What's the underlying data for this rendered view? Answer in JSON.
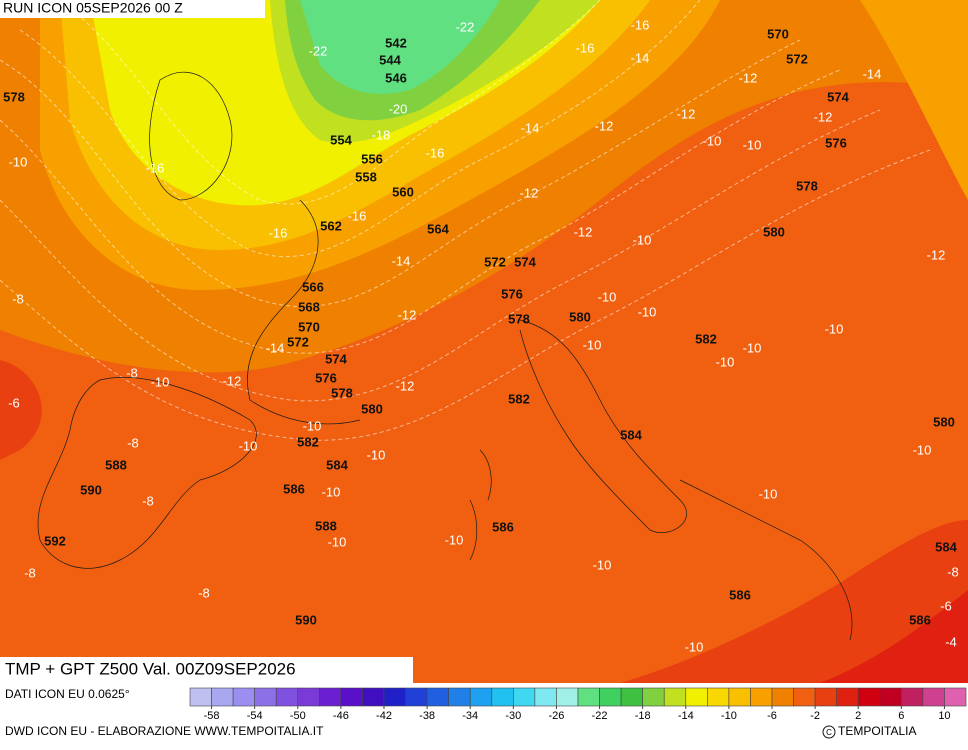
{
  "header": {
    "run": "RUN ICON 05SEP2026 00 Z",
    "title": "TMP + GPT Z500 Val. 00Z09SEP2026"
  },
  "footer": {
    "source": "DATI ICON EU 0.0625°",
    "credit": "DWD ICON EU - ELABORAZIONE WWW.TEMPOITALIA.IT",
    "brand": "TEMPOITALIA"
  },
  "colorbar": {
    "range": [
      -60,
      12
    ],
    "ticks": [
      -58,
      -54,
      -50,
      -46,
      -42,
      -38,
      -34,
      -30,
      -26,
      -22,
      -18,
      -14,
      -10,
      -6,
      -2,
      2,
      6,
      10
    ],
    "colors": [
      "#c0c0f0",
      "#a8a8f0",
      "#9a8ef0",
      "#8c70e8",
      "#8050e0",
      "#7a3ad8",
      "#6a20d0",
      "#5a10c8",
      "#4010c0",
      "#2020c8",
      "#2040d8",
      "#2060e0",
      "#2080e8",
      "#20a0f0",
      "#20c0f0",
      "#40d8f0",
      "#80e8f0",
      "#a0f0e8",
      "#60e080",
      "#40d060",
      "#40c040",
      "#80d040",
      "#c0e020",
      "#f0f000",
      "#f8d800",
      "#f8c000",
      "#f8a000",
      "#f08000",
      "#f06010",
      "#e84010",
      "#e02010",
      "#d00010",
      "#c00020",
      "#c02060",
      "#d04090",
      "#e060b0"
    ]
  },
  "gpt_labels": [
    578,
    542,
    544,
    546,
    554,
    556,
    558,
    560,
    562,
    564,
    566,
    568,
    570,
    572,
    574,
    576,
    578,
    580,
    582,
    584,
    586,
    588,
    590,
    592,
    588,
    590,
    572,
    574,
    576,
    578,
    580,
    582,
    584,
    586,
    586,
    586,
    584,
    580,
    582,
    580,
    578,
    576,
    574,
    572,
    570
  ],
  "tmp_labels": [
    -22,
    -22,
    -20,
    -18,
    -16,
    -16,
    -14,
    -12,
    -14,
    -12,
    -12,
    -12,
    -14,
    -10,
    -10,
    -16,
    -16,
    -10,
    -12,
    -16,
    -16,
    -12,
    -10,
    -12,
    -14,
    -8,
    -12,
    -10,
    -10,
    -10,
    -14,
    -10,
    -10,
    -10,
    -8,
    -10,
    -12,
    -12,
    -6,
    -10,
    -10,
    -8,
    -10,
    -10,
    -8,
    -10,
    -10,
    -10,
    -10,
    -8,
    -10,
    -8,
    -8,
    -6,
    -10,
    -4
  ]
}
